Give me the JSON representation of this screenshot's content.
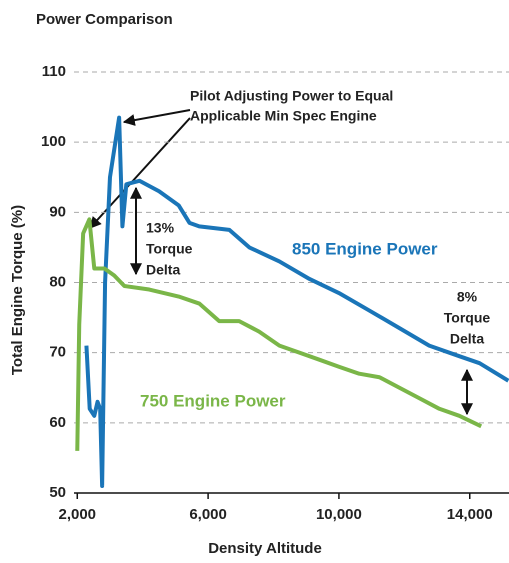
{
  "chart_data": {
    "type": "line",
    "title": "Power Comparison",
    "x_label": "Density Altitude",
    "y_label": "Total Engine Torque (%)",
    "xlim": [
      1900,
      15200
    ],
    "ylim": [
      50,
      110
    ],
    "xticks": [
      {
        "value": 2000,
        "label": "2,000"
      },
      {
        "value": 6000,
        "label": "6,000"
      },
      {
        "value": 10000,
        "label": "10,000"
      },
      {
        "value": 14000,
        "label": "14,000"
      }
    ],
    "yticks": [
      50,
      60,
      70,
      80,
      90,
      100,
      110
    ],
    "grid": true,
    "series": [
      {
        "name": "850 Engine Power",
        "color": "#1a75b8",
        "x": [
          2280,
          2380,
          2520,
          2620,
          2700,
          2760,
          2850,
          3000,
          3280,
          3380,
          3500,
          3900,
          4500,
          5100,
          5430,
          5730,
          6650,
          7260,
          8180,
          9100,
          10000,
          10930,
          11850,
          12760,
          13680,
          14300,
          15180
        ],
        "values": [
          71,
          62,
          61,
          63,
          62,
          51,
          80,
          95,
          103.5,
          88,
          94,
          94.5,
          93,
          91,
          88.5,
          88,
          87.5,
          85,
          83,
          80.5,
          78.5,
          76,
          73.5,
          71,
          69.5,
          68.5,
          66
        ]
      },
      {
        "name": "750 Engine Power",
        "color": "#7ab648",
        "x": [
          2000,
          2060,
          2180,
          2370,
          2520,
          2830,
          3130,
          3440,
          4200,
          5100,
          5730,
          6340,
          6950,
          7560,
          8180,
          8790,
          9400,
          10000,
          10620,
          11240,
          11850,
          12460,
          13070,
          13680,
          14350
        ],
        "values": [
          56,
          74,
          87,
          89,
          82,
          82,
          81,
          79.5,
          79,
          78,
          77,
          74.5,
          74.5,
          73,
          71,
          70,
          69,
          68,
          67,
          66.5,
          65,
          63.5,
          62,
          61,
          59.5
        ]
      }
    ],
    "annotations": [
      {
        "lines": [
          "Pilot Adjusting Power to Equal",
          "Applicable Min Spec Engine"
        ]
      },
      {
        "lines": [
          "13%",
          "Torque",
          "Delta"
        ]
      },
      {
        "lines": [
          "8%",
          "Torque",
          "Delta"
        ]
      }
    ]
  }
}
